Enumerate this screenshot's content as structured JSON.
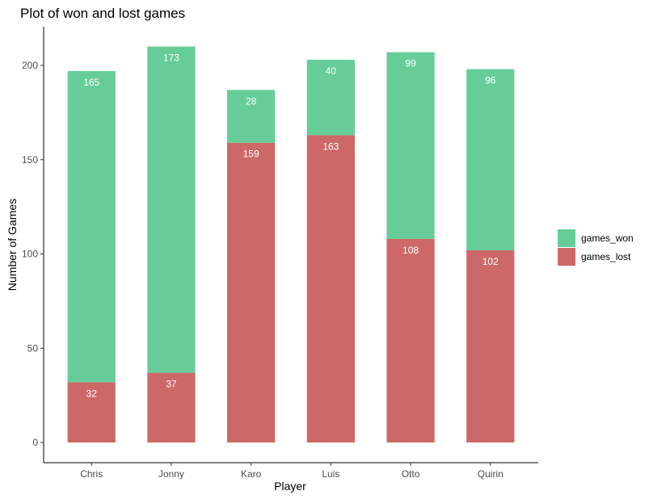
{
  "chart_data": {
    "type": "bar",
    "stacked": true,
    "title": "Plot of won and lost games",
    "xlabel": "Player",
    "ylabel": "Number of Games",
    "categories": [
      "Chris",
      "Jonny",
      "Karo",
      "Luis",
      "Otto",
      "Quirin"
    ],
    "series": [
      {
        "name": "games_lost",
        "color": "#CD6868",
        "values": [
          32,
          37,
          159,
          163,
          108,
          102
        ]
      },
      {
        "name": "games_won",
        "color": "#66CD99",
        "values": [
          165,
          173,
          28,
          40,
          99,
          96
        ]
      }
    ],
    "ylim": [
      0,
      210
    ],
    "yticks": [
      0,
      50,
      100,
      150,
      200
    ],
    "grid": false,
    "legend_position": "right",
    "legend_order": [
      "games_won",
      "games_lost"
    ]
  }
}
